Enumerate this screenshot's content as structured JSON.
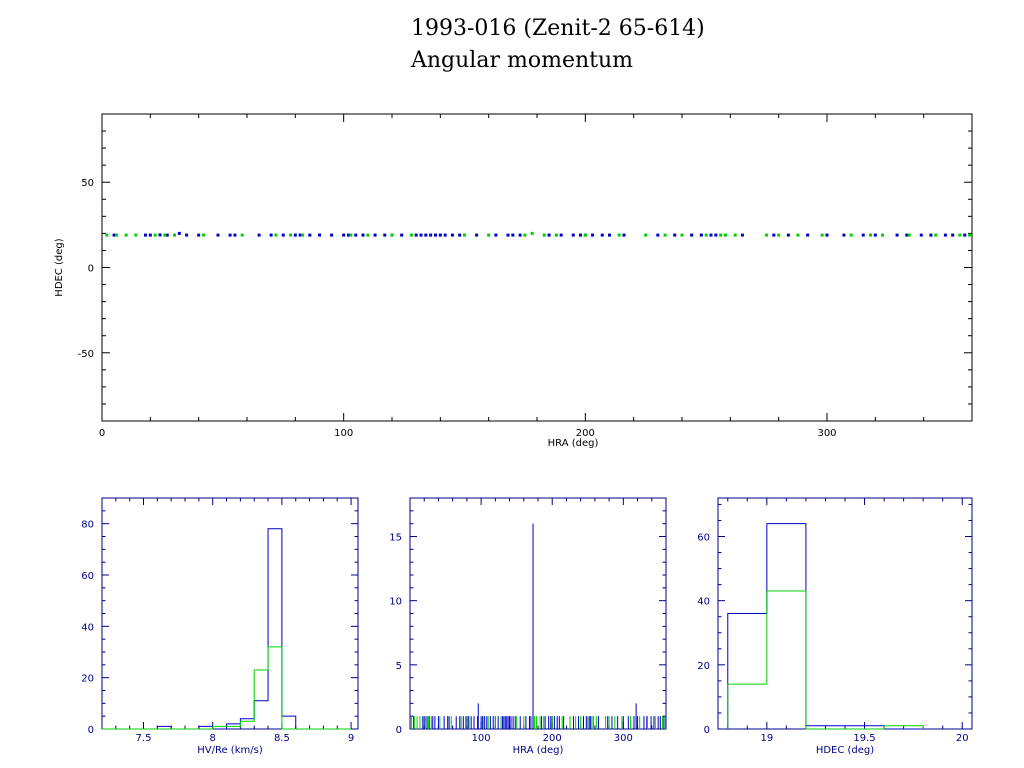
{
  "title_line1": "1993-016 (Zenit-2 65-614)",
  "title_line2": "Angular momentum",
  "colors": {
    "blue": "#0000c8",
    "green": "#00d000",
    "axis_main": "#000000",
    "axis_small": "#00008b"
  },
  "chart_data": [
    {
      "type": "scatter",
      "xlabel": "HRA (deg)",
      "ylabel": "HDEC (deg)",
      "xlim": [
        0,
        360
      ],
      "ylim": [
        -90,
        90
      ],
      "xticks": [
        0,
        100,
        200,
        300
      ],
      "yticks": [
        -50,
        0,
        50
      ],
      "series": [
        {
          "color": "blue",
          "x": [
            5,
            18,
            20,
            24,
            27,
            32,
            35,
            40,
            48,
            53,
            55,
            65,
            70,
            75,
            80,
            82,
            86,
            90,
            95,
            100,
            102,
            105,
            108,
            113,
            117,
            120,
            124,
            130,
            132,
            134,
            136,
            138,
            140,
            142,
            145,
            148,
            155,
            163,
            168,
            170,
            173,
            185,
            190,
            195,
            198,
            200,
            203,
            207,
            210,
            216,
            230,
            237,
            244,
            248,
            252,
            254,
            265,
            278,
            284,
            292,
            300,
            307,
            315,
            320,
            329,
            333,
            339,
            343,
            349,
            352,
            357
          ],
          "y": [
            19,
            19,
            19,
            19.1,
            19,
            20,
            19,
            19,
            19,
            19,
            19,
            19,
            19,
            19,
            19,
            19,
            19,
            19,
            19,
            19,
            19,
            19,
            19,
            19,
            19,
            19,
            19,
            19,
            19,
            19,
            19,
            19,
            19,
            19,
            19,
            19,
            19,
            19,
            19,
            19,
            19,
            19,
            19,
            19,
            19,
            19,
            19,
            19,
            19,
            19,
            19,
            19,
            19,
            19,
            19,
            19,
            19,
            19,
            19,
            19,
            19,
            19,
            19,
            19,
            19,
            19,
            19,
            19,
            19,
            19,
            19
          ]
        },
        {
          "color": "green",
          "x": [
            2,
            6,
            10,
            14,
            22,
            26,
            30,
            42,
            58,
            72,
            78,
            83,
            103,
            110,
            120,
            128,
            150,
            160,
            175,
            178,
            183,
            188,
            200,
            214,
            225,
            233,
            240,
            250,
            256,
            258,
            262,
            275,
            280,
            288,
            298,
            310,
            318,
            323,
            334,
            345,
            355,
            359
          ],
          "y": [
            19,
            19,
            19,
            19,
            19,
            19,
            19,
            19,
            19,
            19,
            19,
            19,
            19,
            19,
            19,
            19,
            19,
            19,
            19,
            20,
            19,
            19,
            19,
            19,
            19,
            19,
            19,
            19,
            19,
            19,
            19,
            19,
            19,
            19,
            19,
            19,
            19,
            19,
            19,
            19,
            19,
            19
          ]
        }
      ]
    },
    {
      "type": "histogram",
      "xlabel": "HV/Re (km/s)",
      "xlim": [
        7.2,
        9.05
      ],
      "ylim": [
        0,
        90
      ],
      "xticks": [
        7.5,
        8,
        8.5,
        9
      ],
      "xtick_labels": [
        "7.5",
        "8",
        "8.5",
        "9"
      ],
      "yticks": [
        0,
        20,
        40,
        60,
        80
      ],
      "bin_edges": [
        7.2,
        7.3,
        7.4,
        7.5,
        7.6,
        7.7,
        7.8,
        7.9,
        8.0,
        8.1,
        8.2,
        8.3,
        8.4,
        8.5,
        8.6,
        8.7,
        8.8,
        8.9,
        9.0
      ],
      "series": [
        {
          "color": "blue",
          "counts": [
            0,
            0,
            0,
            0,
            1,
            0,
            0,
            1,
            0,
            2,
            4,
            11,
            78,
            5,
            0,
            0,
            0,
            0
          ]
        },
        {
          "color": "green",
          "counts": [
            0,
            0,
            0,
            0,
            0,
            0,
            0,
            0,
            1,
            1,
            3,
            23,
            32,
            0,
            0,
            0,
            0,
            0
          ]
        }
      ]
    },
    {
      "type": "histogram",
      "xlabel": "HRA (deg)",
      "xlim": [
        0,
        360
      ],
      "ylim": [
        0,
        18
      ],
      "xticks": [
        100,
        200,
        300
      ],
      "yticks": [
        0,
        5,
        10,
        15
      ],
      "spikes": [
        {
          "color": "blue",
          "x": 173,
          "count": 16
        },
        {
          "color": "blue",
          "x": 96,
          "count": 2
        },
        {
          "color": "blue",
          "x": 318,
          "count": 2
        }
      ]
    },
    {
      "type": "histogram",
      "xlabel": "HDEC (deg)",
      "xlim": [
        18.75,
        20.05
      ],
      "ylim": [
        0,
        72
      ],
      "xticks": [
        19,
        19.5,
        20
      ],
      "xtick_labels": [
        "19",
        "19.5",
        "20"
      ],
      "yticks": [
        0,
        20,
        40,
        60
      ],
      "bin_edges": [
        18.8,
        19.0,
        19.2,
        19.4,
        19.6,
        19.8
      ],
      "series": [
        {
          "color": "blue",
          "counts": [
            36,
            64,
            1,
            1,
            0
          ]
        },
        {
          "color": "green",
          "counts": [
            14,
            43,
            0,
            0,
            1
          ]
        }
      ]
    }
  ]
}
